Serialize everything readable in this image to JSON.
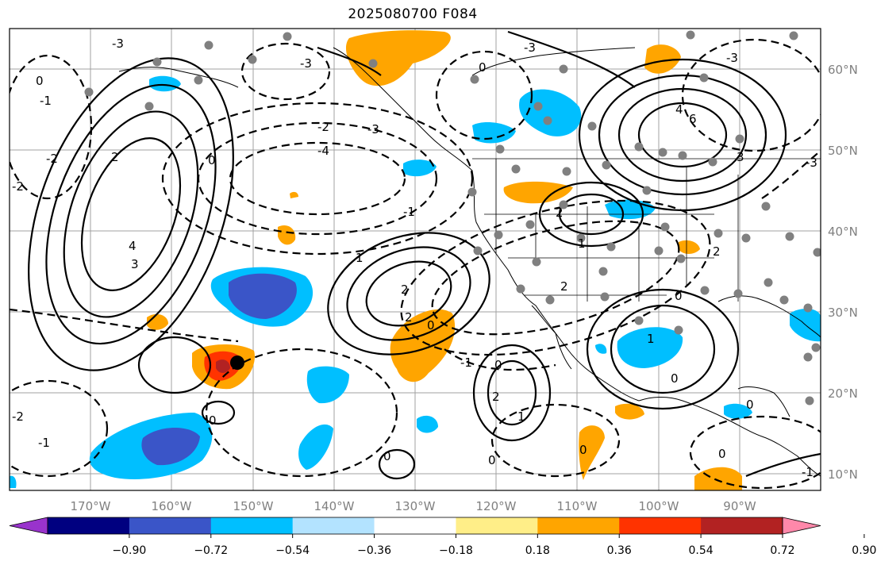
{
  "title": "2025080700 F084",
  "lon_labels": [
    "170°W",
    "160°W",
    "150°W",
    "140°W",
    "130°W",
    "120°W",
    "110°W",
    "100°W",
    "90°W"
  ],
  "lat_labels": [
    "60°N",
    "50°N",
    "40°N",
    "30°N",
    "20°N",
    "10°N"
  ],
  "contour_labels": [
    "-3",
    "-2",
    "-1",
    "0",
    "1",
    "2",
    "3",
    "4",
    "6",
    "-4"
  ],
  "colorbar": {
    "colors": [
      "#9933cc",
      "#000080",
      "#3a55c8",
      "#00bfff",
      "#b3e3ff",
      "#ffffff",
      "#ffee88",
      "#ffa500",
      "#ff3300",
      "#b22222",
      "#ff88aa"
    ],
    "labels": [
      "−0.90",
      "−0.72",
      "−0.54",
      "−0.36",
      "−0.18",
      "0.18",
      "0.36",
      "0.54",
      "0.72",
      "0.90"
    ]
  },
  "marker": "black-dot"
}
